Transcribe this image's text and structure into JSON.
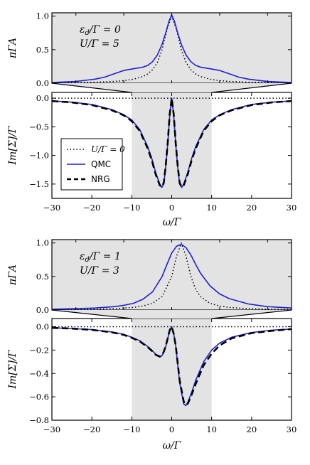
{
  "figure": {
    "width": 436,
    "height": 654
  },
  "chart_data": [
    {
      "type": "line",
      "panel": "top-A",
      "ylabel": "πΓA",
      "ylim": [
        0,
        1.05
      ],
      "xlim": [
        -12.5,
        12.5
      ],
      "yticks": [
        0.0,
        0.5,
        1.0
      ],
      "ytick_labels": [
        "0.0",
        "0.5",
        "1.0"
      ],
      "shade": [
        -10,
        10
      ],
      "annotation": [
        "ε_d/Γ = 0",
        "U/Γ = 5"
      ],
      "series": [
        {
          "name": "U/Γ = 0",
          "style": "dotted",
          "color": "#000000",
          "x": [
            -12.5,
            -10,
            -8,
            -6,
            -5,
            -4,
            -3,
            -2.5,
            -2,
            -1.5,
            -1,
            -0.5,
            0,
            0.5,
            1,
            1.5,
            2,
            2.5,
            3,
            4,
            5,
            6,
            8,
            10,
            12.5
          ],
          "y": [
            0.006,
            0.01,
            0.015,
            0.027,
            0.038,
            0.059,
            0.1,
            0.138,
            0.2,
            0.308,
            0.5,
            0.8,
            1.0,
            0.8,
            0.5,
            0.308,
            0.2,
            0.138,
            0.1,
            0.059,
            0.038,
            0.027,
            0.015,
            0.01,
            0.006
          ]
        },
        {
          "name": "QMC",
          "style": "solid",
          "color": "#1f1fd6",
          "x": [
            -12.5,
            -10,
            -8,
            -7,
            -6,
            -5,
            -4,
            -3,
            -2.5,
            -2,
            -1.5,
            -1,
            -0.6,
            -0.3,
            0,
            0.3,
            0.6,
            1,
            1.5,
            2,
            2.5,
            3,
            4,
            5,
            6,
            7,
            8,
            10,
            12.5
          ],
          "y": [
            0.01,
            0.025,
            0.06,
            0.09,
            0.14,
            0.19,
            0.215,
            0.24,
            0.265,
            0.32,
            0.42,
            0.58,
            0.76,
            0.92,
            1.02,
            0.92,
            0.76,
            0.58,
            0.42,
            0.32,
            0.265,
            0.24,
            0.215,
            0.19,
            0.14,
            0.09,
            0.06,
            0.025,
            0.01
          ]
        }
      ]
    },
    {
      "type": "line",
      "panel": "top-Sigma",
      "xlabel": "ω/Γ",
      "ylabel": "Im[Σ]/Γ",
      "xlim": [
        -30,
        30
      ],
      "ylim": [
        -1.75,
        0.1
      ],
      "xticks": [
        -30,
        -20,
        -10,
        0,
        10,
        20,
        30
      ],
      "xtick_labels": [
        "−30",
        "−20",
        "−10",
        "0",
        "10",
        "20",
        "30"
      ],
      "yticks": [
        0.0,
        -0.5,
        -1.0,
        -1.5
      ],
      "ytick_labels": [
        "0.0",
        "−0.5",
        "−1.0",
        "−1.5"
      ],
      "shade": [
        -10,
        10
      ],
      "legend": {
        "placement": "lower-left",
        "entries": [
          "U/Γ = 0",
          "QMC",
          "NRG"
        ]
      },
      "series": [
        {
          "name": "U/Γ = 0",
          "style": "dotted",
          "color": "#000000",
          "x": [
            -30,
            30
          ],
          "y": [
            0,
            0
          ]
        },
        {
          "name": "QMC",
          "style": "solid",
          "color": "#1f1fd6",
          "x": [
            -30,
            -25,
            -20,
            -15,
            -12,
            -10,
            -8,
            -6,
            -5,
            -4,
            -3,
            -2.5,
            -2,
            -1.5,
            -1,
            -0.5,
            0,
            0.5,
            1,
            1.5,
            2,
            2.5,
            3,
            4,
            5,
            6,
            8,
            10,
            12,
            15,
            20,
            25,
            30
          ],
          "y": [
            -0.05,
            -0.07,
            -0.11,
            -0.2,
            -0.29,
            -0.38,
            -0.55,
            -0.85,
            -1.05,
            -1.3,
            -1.5,
            -1.56,
            -1.5,
            -1.2,
            -0.8,
            -0.3,
            0.0,
            -0.3,
            -0.8,
            -1.2,
            -1.5,
            -1.56,
            -1.5,
            -1.3,
            -1.05,
            -0.85,
            -0.55,
            -0.38,
            -0.29,
            -0.2,
            -0.11,
            -0.07,
            -0.05
          ]
        },
        {
          "name": "NRG",
          "style": "dashed",
          "color": "#000000",
          "x": [
            -30,
            -25,
            -20,
            -15,
            -12,
            -10,
            -8,
            -6,
            -5,
            -4,
            -3,
            -2.5,
            -2,
            -1.5,
            -1,
            -0.5,
            0,
            0.5,
            1,
            1.5,
            2,
            2.5,
            3,
            4,
            5,
            6,
            8,
            10,
            12,
            15,
            20,
            25,
            30
          ],
          "y": [
            -0.05,
            -0.075,
            -0.12,
            -0.21,
            -0.3,
            -0.4,
            -0.57,
            -0.88,
            -1.08,
            -1.33,
            -1.52,
            -1.55,
            -1.48,
            -1.18,
            -0.78,
            -0.28,
            0.0,
            -0.28,
            -0.78,
            -1.18,
            -1.48,
            -1.55,
            -1.52,
            -1.33,
            -1.08,
            -0.88,
            -0.57,
            -0.4,
            -0.3,
            -0.21,
            -0.12,
            -0.075,
            -0.05
          ]
        }
      ]
    },
    {
      "type": "line",
      "panel": "bottom-A",
      "ylabel": "πΓA",
      "ylim": [
        0,
        1.05
      ],
      "xlim": [
        -12.5,
        12.5
      ],
      "yticks": [
        0.0,
        0.5,
        1.0
      ],
      "ytick_labels": [
        "0.0",
        "0.5",
        "1.0"
      ],
      "shade": [
        -10,
        10
      ],
      "annotation": [
        "ε_d/Γ = 1",
        "U/Γ = 3"
      ],
      "series": [
        {
          "name": "U/Γ = 0",
          "style": "dotted",
          "color": "#000000",
          "x": [
            -12.5,
            -10,
            -8,
            -6,
            -4,
            -3,
            -2,
            -1,
            0,
            0.5,
            1,
            1.5,
            2,
            2.5,
            3,
            4,
            5,
            6,
            8,
            10,
            12.5
          ],
          "y": [
            0.005,
            0.008,
            0.012,
            0.02,
            0.038,
            0.059,
            0.1,
            0.2,
            0.5,
            0.8,
            1.0,
            0.8,
            0.5,
            0.308,
            0.2,
            0.1,
            0.059,
            0.038,
            0.02,
            0.012,
            0.008
          ]
        },
        {
          "name": "QMC",
          "style": "solid",
          "color": "#1f1fd6",
          "x": [
            -12.5,
            -10,
            -8,
            -6,
            -5,
            -4,
            -3,
            -2,
            -1,
            -0.5,
            0,
            0.5,
            1,
            1.5,
            2,
            2.5,
            3,
            4,
            5,
            6,
            8,
            10,
            12.5
          ],
          "y": [
            0.012,
            0.02,
            0.03,
            0.05,
            0.07,
            0.1,
            0.16,
            0.27,
            0.5,
            0.68,
            0.85,
            0.95,
            0.98,
            0.93,
            0.82,
            0.68,
            0.55,
            0.36,
            0.24,
            0.17,
            0.09,
            0.05,
            0.03
          ]
        }
      ]
    },
    {
      "type": "line",
      "panel": "bottom-Sigma",
      "xlabel": "ω/Γ",
      "ylabel": "Im[Σ]/Γ",
      "xlim": [
        -30,
        30
      ],
      "ylim": [
        -0.8,
        0.07
      ],
      "xticks": [
        -30,
        -20,
        -10,
        0,
        10,
        20,
        30
      ],
      "xtick_labels": [
        "−30",
        "−20",
        "−10",
        "0",
        "10",
        "20",
        "30"
      ],
      "yticks": [
        0.0,
        -0.2,
        -0.4,
        -0.6,
        -0.8
      ],
      "ytick_labels": [
        "0.0",
        "−0.2",
        "−0.4",
        "−0.6",
        "−0.8"
      ],
      "shade": [
        -10,
        10
      ],
      "series": [
        {
          "name": "U/Γ = 0",
          "style": "dotted",
          "color": "#000000",
          "x": [
            -30,
            30
          ],
          "y": [
            0,
            0
          ]
        },
        {
          "name": "QMC",
          "style": "solid",
          "color": "#1f1fd6",
          "x": [
            -30,
            -25,
            -20,
            -15,
            -12,
            -10,
            -8,
            -6,
            -5,
            -4,
            -3,
            -2.5,
            -2,
            -1.5,
            -1,
            -0.5,
            0,
            0.5,
            1,
            1.5,
            2,
            3,
            3.5,
            4,
            5,
            6,
            8,
            10,
            12,
            15,
            20,
            25,
            30
          ],
          "y": [
            -0.01,
            -0.015,
            -0.025,
            -0.045,
            -0.065,
            -0.09,
            -0.12,
            -0.17,
            -0.2,
            -0.235,
            -0.26,
            -0.25,
            -0.22,
            -0.17,
            -0.1,
            -0.03,
            0.0,
            -0.06,
            -0.16,
            -0.32,
            -0.48,
            -0.66,
            -0.675,
            -0.65,
            -0.56,
            -0.46,
            -0.3,
            -0.2,
            -0.14,
            -0.09,
            -0.05,
            -0.03,
            -0.02
          ]
        },
        {
          "name": "NRG",
          "style": "dashed",
          "color": "#000000",
          "x": [
            -30,
            -25,
            -20,
            -15,
            -12,
            -10,
            -8,
            -6,
            -5,
            -4,
            -3,
            -2.5,
            -2,
            -1.5,
            -1,
            -0.5,
            0,
            0.5,
            1,
            1.5,
            2,
            3,
            3.5,
            4,
            5,
            6,
            8,
            10,
            12,
            15,
            20,
            25,
            30
          ],
          "y": [
            -0.01,
            -0.016,
            -0.027,
            -0.048,
            -0.07,
            -0.095,
            -0.125,
            -0.175,
            -0.205,
            -0.24,
            -0.255,
            -0.245,
            -0.215,
            -0.165,
            -0.1,
            -0.03,
            0.0,
            -0.06,
            -0.16,
            -0.31,
            -0.46,
            -0.64,
            -0.67,
            -0.66,
            -0.58,
            -0.49,
            -0.33,
            -0.23,
            -0.16,
            -0.1,
            -0.055,
            -0.035,
            -0.02
          ]
        }
      ]
    }
  ]
}
